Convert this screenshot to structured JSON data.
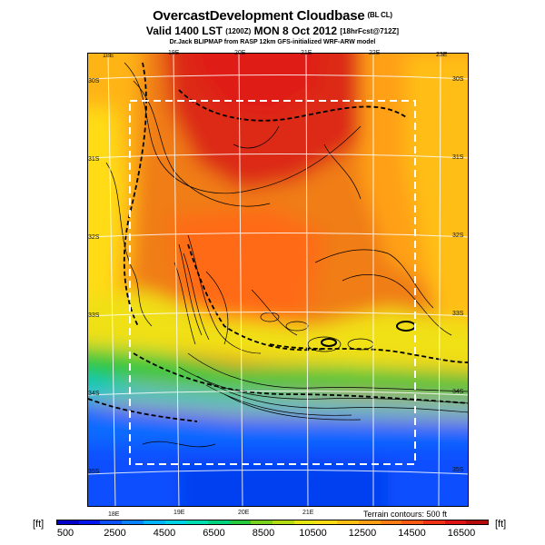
{
  "header": {
    "title": "OvercastDevelopment Cloudbase",
    "title_suffix": "(BL CL)",
    "valid_prefix": "Valid 1400 LST",
    "valid_utc": "(1200Z)",
    "valid_date": "MON 8 Oct 2012",
    "valid_forecast": "[18hrFcst@712Z]",
    "model_line": "Dr.Jack BLIPMAP from RASP 12km GFS-initialized WRF-ARW model"
  },
  "map": {
    "lon_labels_top": [
      "18E",
      "19E",
      "20E",
      "21E",
      "22E",
      "23E"
    ],
    "lon_labels_bottom": [
      "18E",
      "19E",
      "20E",
      "21E"
    ],
    "lat_labels_left": [
      "30S",
      "31S",
      "32S",
      "33S",
      "34S",
      "35S"
    ],
    "lat_labels_right": [
      "30S",
      "31S",
      "32S",
      "33S",
      "34S",
      "35S"
    ],
    "terrain_note": "Terrain contours: 500 ft"
  },
  "legend": {
    "unit": "[ft]",
    "tick_labels": [
      "500",
      "2500",
      "4500",
      "6500",
      "8500",
      "10500",
      "12500",
      "14500",
      "16500"
    ],
    "colors": [
      "#0000c8",
      "#0014f0",
      "#0a50ff",
      "#0a82ff",
      "#00b4ff",
      "#00d2e6",
      "#00dcb4",
      "#00d27d",
      "#28c83c",
      "#78d21e",
      "#b4dc14",
      "#e6e614",
      "#ffdc14",
      "#ffbe14",
      "#ffa014",
      "#ff7d14",
      "#ff5a14",
      "#f03214",
      "#dc1414",
      "#b40a0a"
    ]
  }
}
